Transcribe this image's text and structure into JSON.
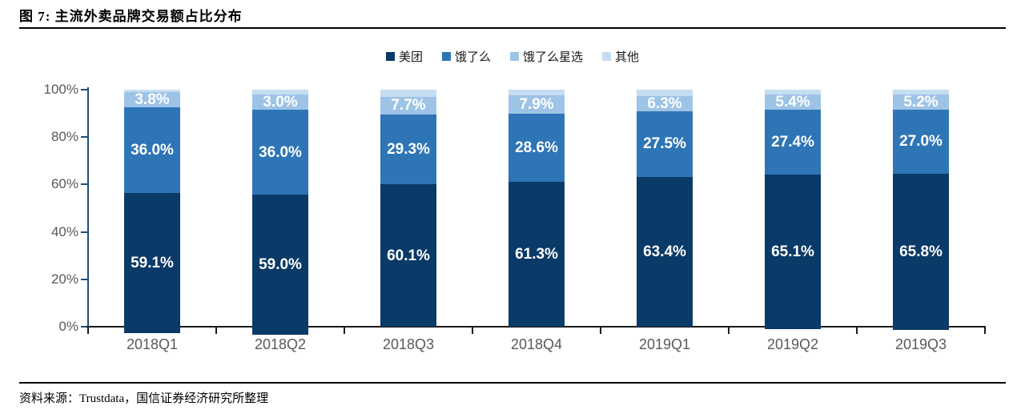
{
  "title": "图 7:  主流外卖品牌交易额占比分布",
  "source": "资料来源：Trustdata，国信证券经济研究所整理",
  "colors": {
    "meituan": "#0a3a68",
    "eleme": "#2e75b6",
    "eleme_xingxuan": "#9dc3e6",
    "qita": "#c5ddf0",
    "y_axis": "#1f4e79",
    "x_axis": "#1a1a1a",
    "tick_label": "#595959",
    "bar_value_label": "#ffffff"
  },
  "chart_data": {
    "type": "bar",
    "stacked": true,
    "percent_stacked": true,
    "grid": false,
    "legend_position": "top",
    "title": "图 7:  主流外卖品牌交易额占比分布",
    "xlabel": "",
    "ylabel": "",
    "ylim": [
      0,
      100
    ],
    "yticks": [
      "0%",
      "20%",
      "40%",
      "60%",
      "80%",
      "100%"
    ],
    "categories": [
      "2018Q1",
      "2018Q2",
      "2018Q3",
      "2018Q4",
      "2019Q1",
      "2019Q2",
      "2019Q3"
    ],
    "series": [
      {
        "name": "美团",
        "color": "#0a3a68",
        "labeled": true,
        "values": [
          59.1,
          59.0,
          60.1,
          61.3,
          63.4,
          65.1,
          65.8
        ]
      },
      {
        "name": "饿了么",
        "color": "#2e75b6",
        "labeled": true,
        "values": [
          36.0,
          36.0,
          29.3,
          28.6,
          27.5,
          27.4,
          27.0
        ]
      },
      {
        "name": "饿了么星选",
        "color": "#9dc3e6",
        "labeled": true,
        "values": [
          3.8,
          3.0,
          7.7,
          7.9,
          6.3,
          5.4,
          5.2
        ]
      },
      {
        "name": "其他",
        "color": "#c5ddf0",
        "labeled": false,
        "values": [
          1.1,
          2.0,
          2.9,
          2.2,
          2.8,
          2.1,
          2.0
        ]
      }
    ]
  }
}
